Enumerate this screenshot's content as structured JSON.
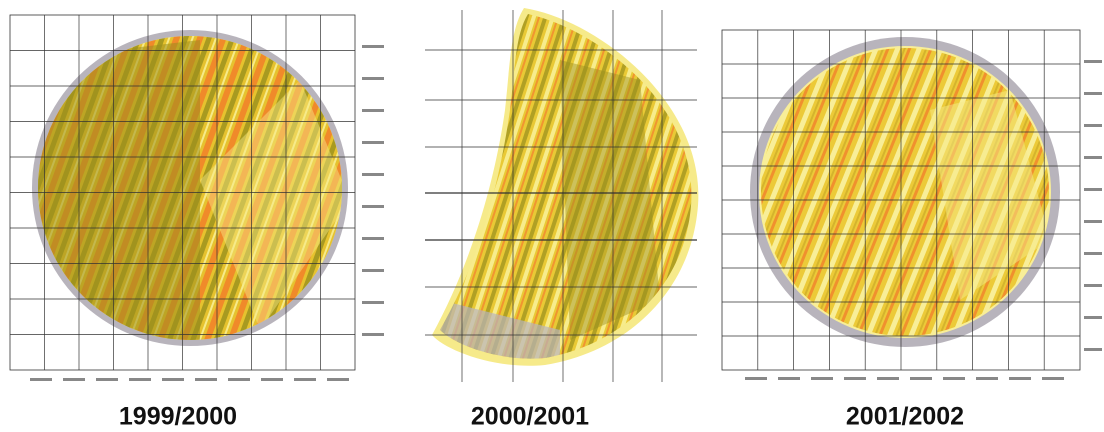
{
  "maps": [
    {
      "label": "1999/2000"
    },
    {
      "label": "2000/2001"
    },
    {
      "label": "2001/2002"
    }
  ]
}
